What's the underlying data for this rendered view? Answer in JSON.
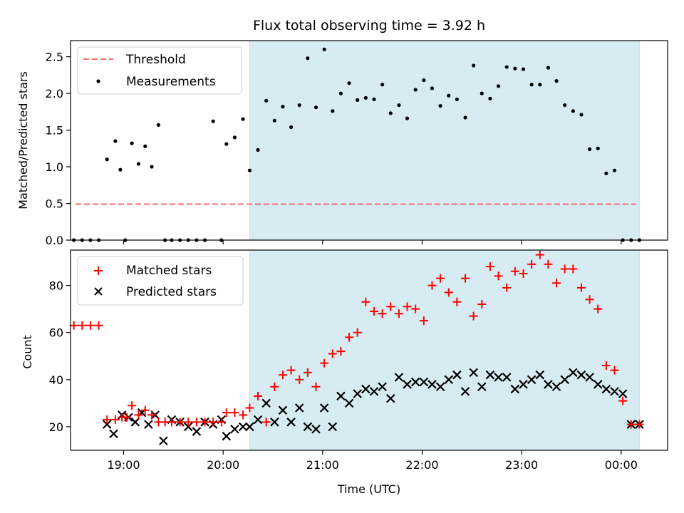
{
  "chart_data": [
    {
      "type": "scatter",
      "title": "Flux total observing time = 3.92 h",
      "xlabel": "",
      "ylabel": "Matched/Predicted stars",
      "xlim": [
        "18:28",
        "00:28"
      ],
      "ylim": [
        0,
        2.72
      ],
      "yticks": [
        0.0,
        0.5,
        1.0,
        1.5,
        2.0,
        2.5
      ],
      "ytick_labels": [
        "0.0",
        "0.5",
        "1.0",
        "1.5",
        "2.0",
        "2.5"
      ],
      "shaded_span": [
        "20:16",
        "00:11"
      ],
      "legend": {
        "placement": "top-left",
        "entries": [
          {
            "label": "Threshold",
            "style": "dashed-line",
            "color": "#f47676"
          },
          {
            "label": "Measurements",
            "style": "dot",
            "color": "#000000"
          }
        ]
      },
      "threshold": {
        "name": "Threshold",
        "value": 0.49,
        "from": "18:31",
        "to": "00:09"
      },
      "series": [
        {
          "name": "Measurements",
          "color": "#000000",
          "x": [
            "18:30",
            "18:35",
            "18:40",
            "18:45",
            "18:50",
            "18:55",
            "18:58",
            "19:01",
            "19:05",
            "19:09",
            "19:13",
            "19:17",
            "19:21",
            "19:25",
            "19:29",
            "19:34",
            "19:39",
            "19:44",
            "19:49",
            "19:54",
            "19:59",
            "20:02",
            "20:07",
            "20:12",
            "20:16",
            "20:21",
            "20:26",
            "20:31",
            "20:36",
            "20:41",
            "20:46",
            "20:51",
            "20:56",
            "21:01",
            "21:06",
            "21:11",
            "21:16",
            "21:21",
            "21:26",
            "21:31",
            "21:36",
            "21:41",
            "21:46",
            "21:51",
            "21:56",
            "22:01",
            "22:06",
            "22:11",
            "22:16",
            "22:21",
            "22:26",
            "22:31",
            "22:36",
            "22:41",
            "22:46",
            "22:51",
            "22:56",
            "23:01",
            "23:06",
            "23:11",
            "23:16",
            "23:21",
            "23:26",
            "23:31",
            "23:36",
            "23:41",
            "23:46",
            "23:51",
            "23:56",
            "00:01",
            "00:06",
            "00:11"
          ],
          "values": [
            0.0,
            0.0,
            0.0,
            0.0,
            1.1,
            1.35,
            0.96,
            0.0,
            1.32,
            1.04,
            1.28,
            1.0,
            1.57,
            0.0,
            0.0,
            0.0,
            0.0,
            0.0,
            0.0,
            1.62,
            0.0,
            1.31,
            1.4,
            1.65,
            0.95,
            1.23,
            1.9,
            1.63,
            1.82,
            1.54,
            1.84,
            2.48,
            1.81,
            2.6,
            1.76,
            2.0,
            2.14,
            1.91,
            1.94,
            1.92,
            2.12,
            1.73,
            1.84,
            1.66,
            2.05,
            2.18,
            2.07,
            1.83,
            1.97,
            1.92,
            1.67,
            2.38,
            2.0,
            1.93,
            2.1,
            2.36,
            2.34,
            2.33,
            2.12,
            2.12,
            2.35,
            2.17,
            1.84,
            1.76,
            1.71,
            1.24,
            1.25,
            0.91,
            0.95,
            0.0,
            0.0,
            0.0
          ]
        }
      ]
    },
    {
      "type": "scatter",
      "title": "",
      "xlabel": "Time (UTC)",
      "ylabel": "Count",
      "xlim": [
        "18:28",
        "00:28"
      ],
      "ylim": [
        10,
        95
      ],
      "xticks": [
        "19:00",
        "20:00",
        "21:00",
        "22:00",
        "23:00",
        "00:00"
      ],
      "yticks": [
        20,
        40,
        60,
        80
      ],
      "ytick_labels": [
        "20",
        "40",
        "60",
        "80"
      ],
      "shaded_span": [
        "20:16",
        "00:11"
      ],
      "legend": {
        "placement": "top-left",
        "entries": [
          {
            "label": "Matched stars",
            "style": "plus",
            "color": "#ff0000"
          },
          {
            "label": "Predicted stars",
            "style": "x",
            "color": "#000000"
          }
        ]
      },
      "series": [
        {
          "name": "Matched stars",
          "marker": "plus",
          "color": "#ff0000",
          "x": [
            "18:30",
            "18:35",
            "18:40",
            "18:45",
            "18:50",
            "18:55",
            "18:59",
            "19:02",
            "19:05",
            "19:09",
            "19:13",
            "19:17",
            "19:21",
            "19:25",
            "19:29",
            "19:34",
            "19:39",
            "19:44",
            "19:49",
            "19:54",
            "19:59",
            "20:02",
            "20:07",
            "20:12",
            "20:16",
            "20:21",
            "20:26",
            "20:31",
            "20:36",
            "20:41",
            "20:46",
            "20:51",
            "20:56",
            "21:01",
            "21:06",
            "21:11",
            "21:16",
            "21:21",
            "21:26",
            "21:31",
            "21:36",
            "21:41",
            "21:46",
            "21:51",
            "21:56",
            "22:01",
            "22:06",
            "22:11",
            "22:16",
            "22:21",
            "22:26",
            "22:31",
            "22:36",
            "22:41",
            "22:46",
            "22:51",
            "22:56",
            "23:01",
            "23:06",
            "23:11",
            "23:16",
            "23:21",
            "23:26",
            "23:31",
            "23:36",
            "23:41",
            "23:46",
            "23:51",
            "23:56",
            "00:01",
            "00:06",
            "00:11"
          ],
          "values": [
            63,
            63,
            63,
            63,
            23,
            23,
            24,
            24,
            29,
            25,
            27,
            25,
            22,
            22,
            22,
            22,
            22,
            22,
            22,
            22,
            22,
            26,
            26,
            25,
            28,
            33,
            22,
            37,
            42,
            44,
            40,
            43,
            37,
            47,
            51,
            52,
            58,
            60,
            73,
            69,
            68,
            71,
            68,
            71,
            70,
            65,
            80,
            83,
            77,
            73,
            83,
            67,
            72,
            88,
            84,
            79,
            86,
            85,
            89,
            93,
            89,
            81,
            87,
            87,
            79,
            74,
            70,
            46,
            44,
            31,
            21,
            21
          ]
        },
        {
          "name": "Predicted stars",
          "marker": "x",
          "color": "#000000",
          "x": [
            "18:50",
            "18:54",
            "18:59",
            "19:03",
            "19:07",
            "19:11",
            "19:15",
            "19:19",
            "19:24",
            "19:29",
            "19:34",
            "19:39",
            "19:44",
            "19:49",
            "19:54",
            "19:59",
            "20:02",
            "20:07",
            "20:12",
            "20:16",
            "20:21",
            "20:26",
            "20:31",
            "20:36",
            "20:41",
            "20:46",
            "20:51",
            "20:56",
            "21:01",
            "21:06",
            "21:11",
            "21:16",
            "21:21",
            "21:26",
            "21:31",
            "21:36",
            "21:41",
            "21:46",
            "21:51",
            "21:56",
            "22:01",
            "22:06",
            "22:11",
            "22:16",
            "22:21",
            "22:26",
            "22:31",
            "22:36",
            "22:41",
            "22:46",
            "22:51",
            "22:56",
            "23:01",
            "23:06",
            "23:11",
            "23:16",
            "23:21",
            "23:26",
            "23:31",
            "23:36",
            "23:41",
            "23:46",
            "23:51",
            "23:56",
            "00:01",
            "00:06",
            "00:11"
          ],
          "values": [
            21,
            17,
            25,
            24,
            22,
            26,
            21,
            25,
            14,
            23,
            22,
            20,
            18,
            22,
            21,
            23,
            16,
            19,
            20,
            20,
            23,
            30,
            22,
            27,
            22,
            28,
            20,
            19,
            28,
            20,
            33,
            30,
            34,
            36,
            35,
            37,
            32,
            41,
            38,
            39,
            39,
            38,
            37,
            40,
            42,
            35,
            43,
            37,
            42,
            41,
            41,
            36,
            38,
            40,
            42,
            38,
            37,
            40,
            43,
            42,
            41,
            38,
            36,
            35,
            34,
            21,
            21
          ]
        }
      ]
    }
  ]
}
